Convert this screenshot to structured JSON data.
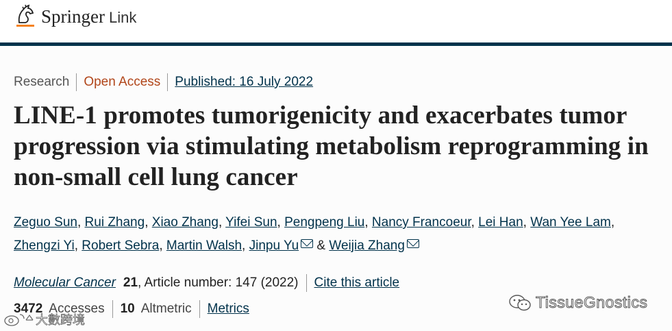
{
  "header": {
    "brand": "Springer",
    "brand_suffix": "Link"
  },
  "article": {
    "type": "Research",
    "access": "Open Access",
    "published": "Published: 16 July 2022",
    "title": "LINE-1 promotes tumorigenicity and exacerbates tumor progression via stimulating metabolism reprogramming in non-small cell lung cancer",
    "authors": [
      {
        "name": "Zeguo Sun",
        "sep": ", "
      },
      {
        "name": "Rui Zhang",
        "sep": ", "
      },
      {
        "name": "Xiao Zhang",
        "sep": ", "
      },
      {
        "name": "Yifei Sun",
        "sep": ", "
      },
      {
        "name": "Pengpeng Liu",
        "sep": ", "
      },
      {
        "name": "Nancy Francoeur",
        "sep": ", "
      },
      {
        "name": "Lei Han",
        "sep": ", "
      },
      {
        "name": "Wan Yee Lam",
        "sep": ", "
      },
      {
        "name": "Zhengzi Yi",
        "sep": ", "
      },
      {
        "name": "Robert Sebra",
        "sep": ", "
      },
      {
        "name": "Martin Walsh",
        "sep": ", "
      },
      {
        "name": "Jinpu Yu",
        "sep": " & ",
        "email": true
      },
      {
        "name": "Weijia Zhang",
        "sep": "",
        "email": true
      }
    ],
    "journal": "Molecular Cancer",
    "volume": "21",
    "article_number": ", Article number: 147 (2022)",
    "cite_label": "Cite this article",
    "accesses_count": "3472",
    "accesses_label": "Accesses",
    "altmetric_count": "10",
    "altmetric_label": "Altmetric",
    "metrics_label": "Metrics"
  },
  "watermarks": {
    "right": "TissueGnostics",
    "left": "大數跨境"
  },
  "colors": {
    "brand_navy": "#01324b",
    "open_access": "#b1461a",
    "logo_orange": "#f58220"
  }
}
